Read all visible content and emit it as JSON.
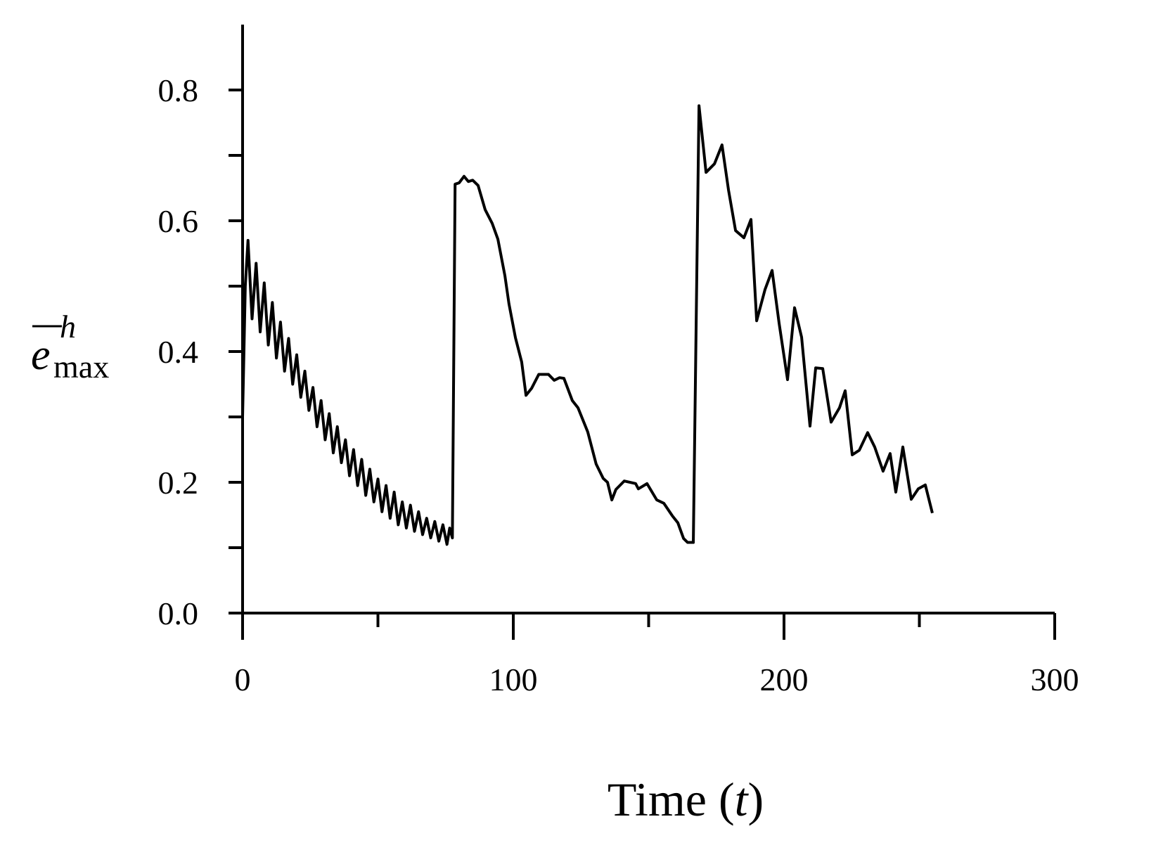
{
  "chart_data": {
    "type": "line",
    "xlabel": [
      "Time (",
      "t",
      ")"
    ],
    "ylabel": {
      "base": "e",
      "sup": "h",
      "sub": "max"
    },
    "xlim": [
      0,
      300
    ],
    "xticks": [
      0,
      100,
      200,
      300
    ],
    "xminorticks": [
      50,
      150,
      250
    ],
    "ylim": [
      0,
      0.9
    ],
    "yticks": [
      {
        "value": 0,
        "label": "0.0"
      },
      0.2,
      0.4,
      0.6,
      0.8
    ],
    "yminorticks": [
      0.1,
      0.3,
      0.5,
      0.7
    ],
    "color": "#000000",
    "x": [
      0,
      1,
      2,
      3.5,
      5,
      6.5,
      8,
      9.5,
      11,
      12.5,
      14,
      15.5,
      17,
      18.5,
      20,
      21.5,
      23,
      24.5,
      26,
      27.5,
      29,
      30.5,
      32,
      33.5,
      35,
      36.5,
      38,
      39.5,
      41,
      42.5,
      44,
      45.5,
      47,
      48.5,
      50,
      51.5,
      53,
      54.5,
      56,
      57.5,
      59,
      60.5,
      62,
      63.5,
      65,
      66.5,
      68,
      69.5,
      71,
      72.5,
      74,
      75.5,
      76.5,
      77.5,
      78.5,
      80,
      81.8,
      83.4,
      85,
      87,
      89.6,
      92.2,
      94.3,
      96.9,
      98.4,
      100.8,
      103.1,
      104.7,
      106.8,
      109.4,
      113,
      115.1,
      117.1,
      118.7,
      121.8,
      123.9,
      127.5,
      130.6,
      133.2,
      134.8,
      136.4,
      137.9,
      141,
      145.2,
      146.2,
      149.4,
      153,
      155.6,
      158.7,
      160.8,
      162.9,
      164.4,
      166.5,
      168.6,
      171.2,
      174.3,
      177.1,
      179.5,
      182.1,
      185.2,
      187.8,
      189.9,
      193,
      195.6,
      198.2,
      201.3,
      203.9,
      206.5,
      209.6,
      211.7,
      214.3,
      217.4,
      220.5,
      222.6,
      225.2,
      227.8,
      230.9,
      233.5,
      236.6,
      239.2,
      241.3,
      243.9,
      247,
      249.6,
      252.2,
      254.8
    ],
    "values": [
      0.3,
      0.5,
      0.57,
      0.45,
      0.535,
      0.43,
      0.505,
      0.41,
      0.475,
      0.39,
      0.445,
      0.37,
      0.42,
      0.35,
      0.395,
      0.33,
      0.37,
      0.31,
      0.345,
      0.285,
      0.325,
      0.265,
      0.305,
      0.245,
      0.285,
      0.23,
      0.265,
      0.21,
      0.25,
      0.195,
      0.235,
      0.18,
      0.22,
      0.17,
      0.205,
      0.155,
      0.195,
      0.145,
      0.185,
      0.135,
      0.17,
      0.13,
      0.165,
      0.125,
      0.155,
      0.12,
      0.145,
      0.115,
      0.14,
      0.11,
      0.135,
      0.105,
      0.13,
      0.115,
      0.656,
      0.658,
      0.668,
      0.66,
      0.662,
      0.654,
      0.617,
      0.596,
      0.572,
      0.516,
      0.473,
      0.421,
      0.384,
      0.333,
      0.344,
      0.365,
      0.365,
      0.356,
      0.36,
      0.359,
      0.325,
      0.314,
      0.277,
      0.228,
      0.206,
      0.2,
      0.173,
      0.189,
      0.202,
      0.198,
      0.19,
      0.198,
      0.173,
      0.168,
      0.149,
      0.138,
      0.114,
      0.108,
      0.108,
      0.776,
      0.674,
      0.687,
      0.716,
      0.647,
      0.585,
      0.574,
      0.602,
      0.447,
      0.495,
      0.524,
      0.443,
      0.357,
      0.467,
      0.422,
      0.286,
      0.375,
      0.374,
      0.292,
      0.314,
      0.34,
      0.242,
      0.249,
      0.276,
      0.254,
      0.217,
      0.244,
      0.185,
      0.254,
      0.174,
      0.19,
      0.196,
      0.153
    ]
  }
}
